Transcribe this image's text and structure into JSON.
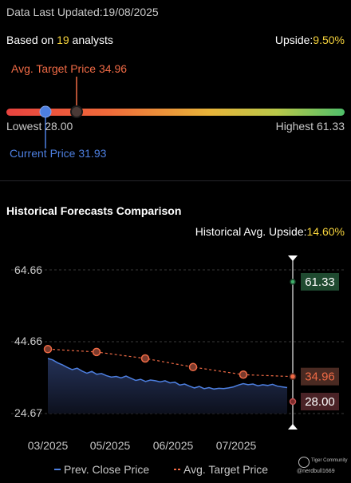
{
  "header": {
    "updated_label": "Data Last Updated:",
    "updated_date": "19/08/2025",
    "based_prefix": "Based on ",
    "analyst_count": "19",
    "based_suffix": " analysts",
    "upside_label": "Upside:",
    "upside_value": "9.50%"
  },
  "range": {
    "avg_target_text": "Avg. Target Price 34.96",
    "lowest_text": "Lowest 28.00",
    "highest_text": "Highest 61.33",
    "current_text": "Current Price 31.93",
    "low": 28.0,
    "high": 61.33,
    "current": 31.93,
    "avg_target": 34.96
  },
  "history": {
    "title": "Historical Forecasts Comparison",
    "upside_label": "Historical Avg. Upside:",
    "upside_value": "14.60%"
  },
  "chart_data": {
    "type": "line",
    "y_ticks": [
      "64.66",
      "44.66",
      "24.67"
    ],
    "x_ticks": [
      "03/2025",
      "05/2025",
      "06/2025",
      "07/2025"
    ],
    "ylim": [
      24.67,
      64.66
    ],
    "series": [
      {
        "name": "Prev. Close Price",
        "values": [
          40.0,
          39.6,
          38.8,
          38.2,
          37.5,
          36.9,
          37.3,
          36.5,
          35.9,
          36.4,
          35.6,
          35.8,
          35.2,
          34.8,
          35.0,
          34.6,
          35.1,
          34.5,
          33.9,
          34.2,
          33.6,
          34.0,
          33.8,
          33.5,
          33.8,
          33.2,
          33.4,
          32.6,
          32.9,
          32.3,
          31.8,
          32.2,
          31.6,
          31.9,
          31.5,
          31.7,
          31.6,
          31.8,
          32.1,
          32.6,
          33.0,
          32.7,
          32.9,
          32.4,
          32.7,
          32.5,
          32.8,
          32.3,
          32.1,
          31.9
        ],
        "color": "#4d7fe0"
      },
      {
        "name": "Avg. Target Price",
        "values": [
          42.6,
          41.8,
          40.0,
          37.6,
          35.5,
          34.96
        ],
        "color": "#ef6a45"
      }
    ],
    "markers": {
      "high": "61.33",
      "avg": "34.96",
      "low": "28.00",
      "high_value": 61.33,
      "avg_value": 34.96,
      "low_value": 28.0
    },
    "legend": [
      "Prev. Close Price",
      "Avg. Target Price"
    ]
  },
  "footer": {
    "brand": "Tiger Community",
    "handle": "@nerdbull1669"
  }
}
